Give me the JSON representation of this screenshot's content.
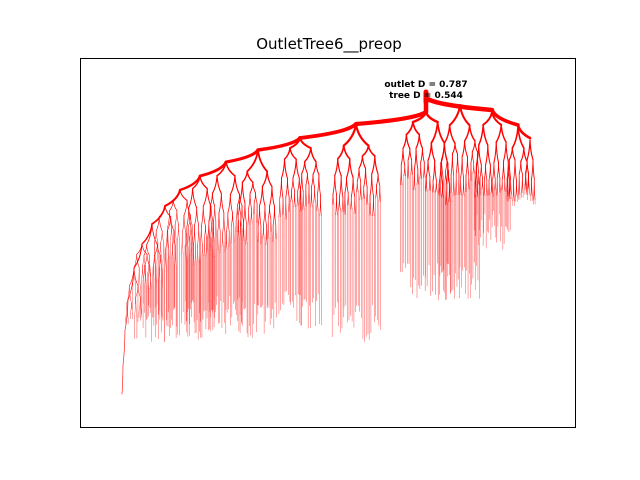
{
  "figure": {
    "title": "OutletTree6__preop",
    "annotations": {
      "outlet_label": "outlet D = 0.787",
      "tree_label": "tree D = 0.544"
    },
    "colors": {
      "tree": "#ff0000",
      "axes_frame": "#000000",
      "background": "#ffffff"
    },
    "axes": {
      "ticks_visible": false,
      "grid": false
    }
  },
  "tree": {
    "outlet_diameter": 0.787,
    "tree_diameter": 0.544
  }
}
